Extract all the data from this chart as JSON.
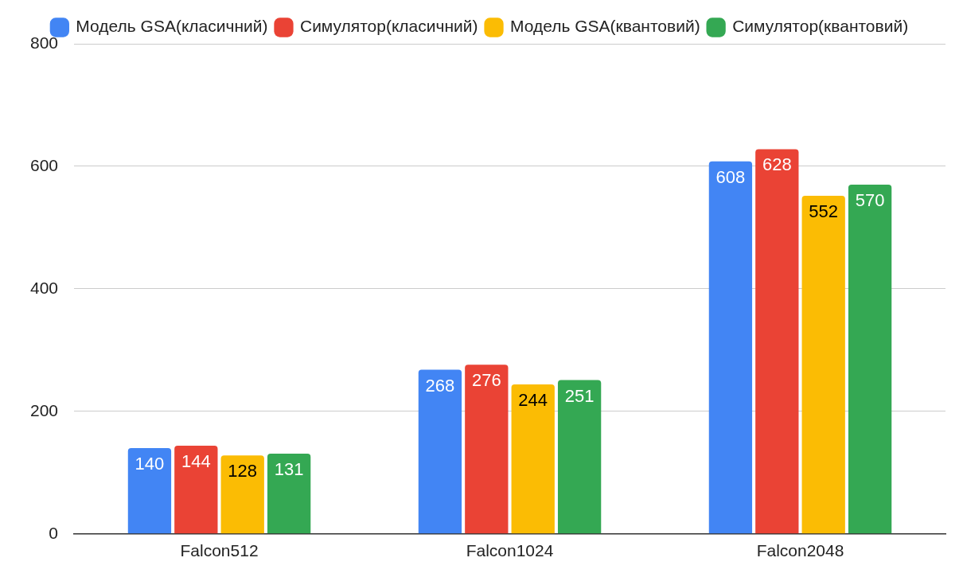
{
  "chart_data": {
    "type": "bar",
    "categories": [
      "Falcon512",
      "Falcon1024",
      "Falcon2048"
    ],
    "series": [
      {
        "name": "Модель GSA(класичний)",
        "color": "#4285f4",
        "values": [
          140,
          268,
          608
        ]
      },
      {
        "name": "Симулятор(класичний)",
        "color": "#ea4335",
        "values": [
          144,
          276,
          628
        ]
      },
      {
        "name": "Модель GSA(квантовий)",
        "color": "#fbbc04",
        "values": [
          128,
          244,
          552
        ]
      },
      {
        "name": "Симулятор(квантовий)",
        "color": "#34a853",
        "values": [
          131,
          251,
          570
        ]
      }
    ],
    "ylim": [
      0,
      800
    ],
    "yticks": [
      0,
      200,
      400,
      600,
      800
    ],
    "grid": "y",
    "legend": "top",
    "data_labels": true
  }
}
